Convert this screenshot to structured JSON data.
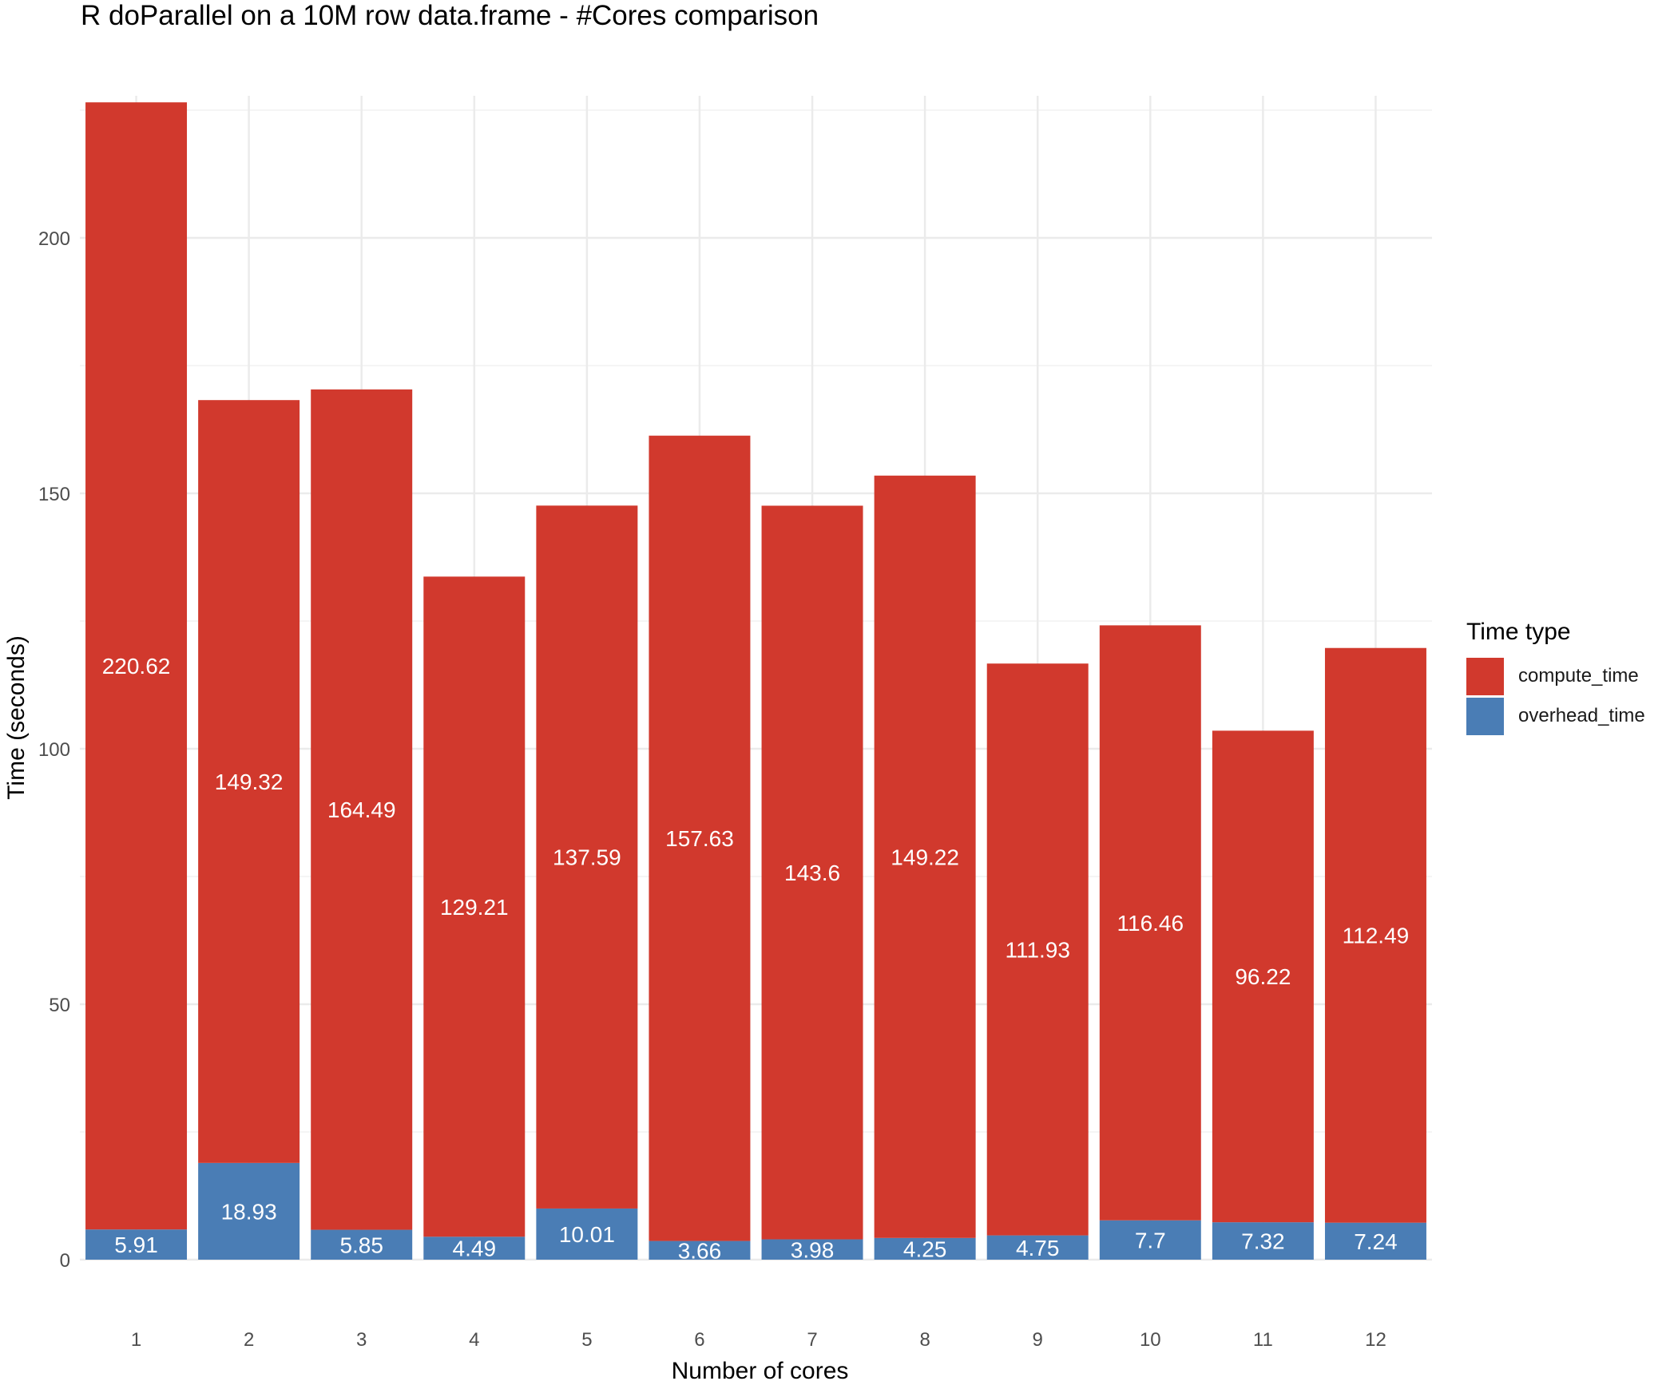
{
  "chart_data": {
    "type": "bar",
    "stacked": true,
    "title": "R doParallel on a 10M row data.frame - #Cores comparison",
    "xlabel": "Number of cores",
    "ylabel": "Time (seconds)",
    "categories": [
      "1",
      "2",
      "3",
      "4",
      "5",
      "6",
      "7",
      "8",
      "9",
      "10",
      "11",
      "12"
    ],
    "yticks": [
      0,
      50,
      100,
      150,
      200
    ],
    "ylim": [
      0,
      230
    ],
    "grid": true,
    "legend_position": "right",
    "legend_title": "Time type",
    "series": [
      {
        "name": "compute_time",
        "color": "#d1392d",
        "values": [
          220.62,
          149.32,
          164.49,
          129.21,
          137.59,
          157.63,
          143.6,
          149.22,
          111.93,
          116.46,
          96.22,
          112.49
        ]
      },
      {
        "name": "overhead_time",
        "color": "#4a7db5",
        "values": [
          5.91,
          18.93,
          5.85,
          4.49,
          10.01,
          3.66,
          3.98,
          4.25,
          4.75,
          7.7,
          7.32,
          7.24
        ]
      }
    ]
  }
}
